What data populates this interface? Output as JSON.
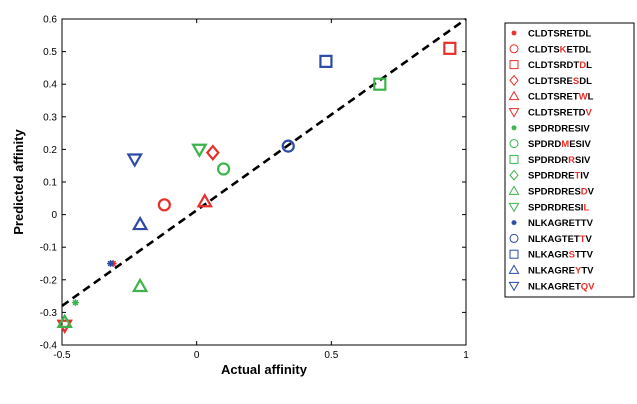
{
  "chart_data": {
    "type": "scatter",
    "xlabel": "Actual affinity",
    "ylabel": "Predicted affinity",
    "xlim": [
      -0.5,
      1.0
    ],
    "ylim": [
      -0.4,
      0.6
    ],
    "xticks": [
      "-0.5",
      "0",
      "0.5",
      "1"
    ],
    "yticks": [
      "-0.4",
      "-0.3",
      "-0.2",
      "-0.1",
      "0",
      "0.1",
      "0.2",
      "0.3",
      "0.4",
      "0.5",
      "0.6"
    ],
    "grid": false,
    "legend_position": "right",
    "fit_line": {
      "style": "dashed",
      "color": "#000000",
      "x": [
        -0.5,
        1.0
      ],
      "y": [
        -0.28,
        0.6
      ]
    },
    "series": [
      {
        "name": "CLDTSRETDL",
        "mutated": "",
        "marker": "asterisk",
        "color": "#e8302a",
        "points": [
          [
            -0.31,
            -0.15
          ]
        ]
      },
      {
        "name": "CLDTSKETDL",
        "mutated": "K",
        "marker": "circle",
        "color": "#e8302a",
        "points": [
          [
            -0.12,
            0.03
          ]
        ]
      },
      {
        "name": "CLDTSRDTDL",
        "mutated": "D",
        "marker": "square",
        "color": "#e8302a",
        "points": [
          [
            0.94,
            0.51
          ]
        ]
      },
      {
        "name": "CLDTSRESDL",
        "mutated": "S",
        "marker": "diamond",
        "color": "#e8302a",
        "points": [
          [
            0.06,
            0.19
          ]
        ]
      },
      {
        "name": "CLDTSRETWL",
        "mutated": "W",
        "marker": "triangle-up",
        "color": "#e8302a",
        "points": [
          [
            0.03,
            0.04
          ]
        ]
      },
      {
        "name": "CLDTSRETDV",
        "mutated": "V",
        "marker": "triangle-down",
        "color": "#e8302a",
        "points": [
          [
            -0.49,
            -0.34
          ]
        ]
      },
      {
        "name": "SPDRDRESIV",
        "mutated": "",
        "marker": "asterisk",
        "color": "#3cb44b",
        "points": [
          [
            -0.45,
            -0.27
          ]
        ]
      },
      {
        "name": "SPDRDMESIV",
        "mutated": "M",
        "marker": "circle",
        "color": "#3cb44b",
        "points": [
          [
            0.1,
            0.14
          ]
        ]
      },
      {
        "name": "SPDRDRRSIV",
        "mutated": "R",
        "marker": "square",
        "color": "#3cb44b",
        "points": [
          [
            0.68,
            0.4
          ]
        ]
      },
      {
        "name": "SPDRDRETIV",
        "mutated": "T",
        "marker": "diamond",
        "color": "#3cb44b",
        "points": []
      },
      {
        "name": "SPDRDRESDV",
        "mutated": "D",
        "marker": "triangle-up",
        "color": "#3cb44b",
        "points": [
          [
            -0.21,
            -0.22
          ],
          [
            -0.49,
            -0.33
          ]
        ]
      },
      {
        "name": "SPDRDRESIL",
        "mutated": "L",
        "marker": "triangle-down",
        "color": "#3cb44b",
        "points": [
          [
            0.01,
            0.2
          ]
        ]
      },
      {
        "name": "NLKAGRETTV",
        "mutated": "",
        "marker": "asterisk",
        "color": "#2b4ba6",
        "points": [
          [
            -0.32,
            -0.15
          ]
        ]
      },
      {
        "name": "NLKAGTETTV",
        "mutated": "T",
        "marker": "circle",
        "color": "#2b4ba6",
        "points": [
          [
            0.34,
            0.21
          ]
        ]
      },
      {
        "name": "NLKAGRSTTV",
        "mutated": "S",
        "marker": "square",
        "color": "#2b4ba6",
        "points": [
          [
            0.48,
            0.47
          ]
        ]
      },
      {
        "name": "NLKAGREYTV",
        "mutated": "Y",
        "marker": "triangle-up",
        "color": "#2b4ba6",
        "points": [
          [
            -0.21,
            -0.03
          ]
        ]
      },
      {
        "name": "NLKAGRETQV",
        "mutated": "QV",
        "marker": "triangle-down",
        "color": "#2b4ba6",
        "points": [
          [
            -0.23,
            0.17
          ]
        ]
      }
    ]
  }
}
